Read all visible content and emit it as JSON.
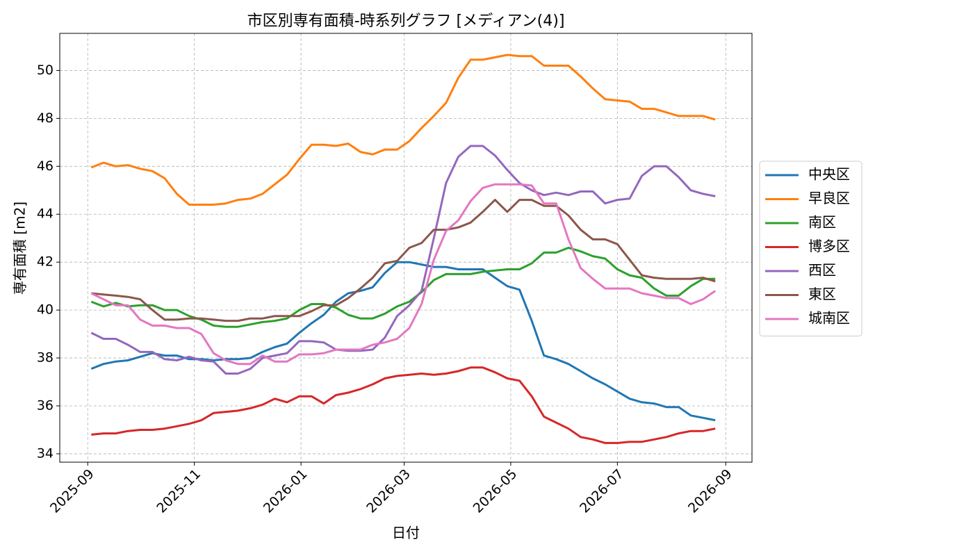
{
  "chart_data": {
    "type": "line",
    "title": "市区別専有面積-時系列グラフ [メディアン(4)]",
    "x_label": "日付",
    "y_label": "専有面積 [m2]",
    "x": [
      "2025-09-03",
      "2025-09-10",
      "2025-09-17",
      "2025-09-24",
      "2025-10-01",
      "2025-10-08",
      "2025-10-15",
      "2025-10-22",
      "2025-10-29",
      "2025-11-05",
      "2025-11-12",
      "2025-11-19",
      "2025-11-26",
      "2025-12-03",
      "2025-12-10",
      "2025-12-17",
      "2025-12-24",
      "2025-12-31",
      "2026-01-07",
      "2026-01-14",
      "2026-01-21",
      "2026-01-28",
      "2026-02-04",
      "2026-02-11",
      "2026-02-18",
      "2026-02-25",
      "2026-03-04",
      "2026-03-11",
      "2026-03-18",
      "2026-03-25",
      "2026-04-01",
      "2026-04-08",
      "2026-04-15",
      "2026-04-22",
      "2026-04-29",
      "2026-05-06",
      "2026-05-13",
      "2026-05-20",
      "2026-05-27",
      "2026-06-03",
      "2026-06-10",
      "2026-06-17",
      "2026-06-24",
      "2026-07-01",
      "2026-07-08",
      "2026-07-15",
      "2026-07-22",
      "2026-07-29",
      "2026-08-05",
      "2026-08-12",
      "2026-08-19",
      "2026-08-26"
    ],
    "series": [
      {
        "name": "中央区",
        "color": "#1f77b4",
        "values": [
          37.55,
          37.75,
          37.85,
          37.9,
          38.05,
          38.2,
          38.1,
          38.1,
          37.95,
          37.95,
          37.9,
          37.95,
          37.95,
          38.0,
          38.25,
          38.45,
          38.6,
          39.05,
          39.45,
          39.8,
          40.35,
          40.7,
          40.8,
          40.95,
          41.55,
          42.0,
          42.0,
          41.9,
          41.8,
          41.8,
          41.7,
          41.7,
          41.7,
          41.35,
          41.0,
          40.85,
          39.55,
          38.1,
          37.95,
          37.75,
          37.45,
          37.15,
          36.9,
          36.6,
          36.3,
          36.15,
          36.1,
          35.95,
          35.95,
          35.6,
          35.5,
          35.4
        ]
      },
      {
        "name": "早良区",
        "color": "#ff7f0e",
        "values": [
          45.95,
          46.15,
          46.0,
          46.05,
          45.9,
          45.8,
          45.5,
          44.85,
          44.4,
          44.4,
          44.4,
          44.45,
          44.6,
          44.65,
          44.85,
          45.25,
          45.65,
          46.3,
          46.9,
          46.9,
          46.85,
          46.95,
          46.6,
          46.5,
          46.7,
          46.7,
          47.05,
          47.6,
          48.1,
          48.65,
          49.7,
          50.45,
          50.45,
          50.55,
          50.65,
          50.6,
          50.6,
          50.2,
          50.2,
          50.2,
          49.75,
          49.25,
          48.8,
          48.75,
          48.7,
          48.4,
          48.4,
          48.25,
          48.1,
          48.1,
          48.1,
          47.95
        ]
      },
      {
        "name": "南区",
        "color": "#2ca02c",
        "values": [
          40.35,
          40.15,
          40.3,
          40.15,
          40.2,
          40.2,
          40.0,
          40.0,
          39.75,
          39.6,
          39.35,
          39.3,
          39.3,
          39.4,
          39.5,
          39.55,
          39.65,
          40.0,
          40.25,
          40.25,
          40.1,
          39.8,
          39.65,
          39.65,
          39.85,
          40.15,
          40.35,
          40.75,
          41.25,
          41.5,
          41.5,
          41.5,
          41.6,
          41.65,
          41.7,
          41.7,
          41.95,
          42.4,
          42.4,
          42.6,
          42.45,
          42.25,
          42.15,
          41.7,
          41.45,
          41.35,
          40.9,
          40.6,
          40.6,
          41.0,
          41.3,
          41.3
        ]
      },
      {
        "name": "博多区",
        "color": "#d62728",
        "values": [
          34.8,
          34.85,
          34.85,
          34.95,
          35.0,
          35.0,
          35.05,
          35.15,
          35.25,
          35.4,
          35.7,
          35.75,
          35.8,
          35.9,
          36.05,
          36.3,
          36.15,
          36.4,
          36.4,
          36.1,
          36.45,
          36.55,
          36.7,
          36.9,
          37.15,
          37.25,
          37.3,
          37.35,
          37.3,
          37.35,
          37.45,
          37.6,
          37.6,
          37.4,
          37.15,
          37.05,
          36.4,
          35.55,
          35.3,
          35.05,
          34.7,
          34.6,
          34.45,
          34.45,
          34.5,
          34.5,
          34.6,
          34.7,
          34.85,
          34.95,
          34.95,
          35.05
        ]
      },
      {
        "name": "西区",
        "color": "#9467bd",
        "values": [
          39.05,
          38.8,
          38.8,
          38.55,
          38.25,
          38.25,
          37.95,
          37.9,
          38.05,
          37.9,
          37.85,
          37.35,
          37.35,
          37.55,
          38.0,
          38.1,
          38.2,
          38.7,
          38.7,
          38.65,
          38.35,
          38.3,
          38.3,
          38.35,
          38.85,
          39.75,
          40.2,
          40.8,
          43.0,
          45.3,
          46.4,
          46.85,
          46.85,
          46.45,
          45.85,
          45.3,
          45.0,
          44.8,
          44.9,
          44.8,
          44.95,
          44.95,
          44.45,
          44.6,
          44.65,
          45.6,
          46.0,
          46.0,
          45.55,
          45.0,
          44.85,
          44.75
        ]
      },
      {
        "name": "東区",
        "color": "#8c564b",
        "values": [
          40.7,
          40.65,
          40.6,
          40.55,
          40.45,
          40.0,
          39.6,
          39.6,
          39.65,
          39.65,
          39.6,
          39.55,
          39.55,
          39.65,
          39.65,
          39.75,
          39.75,
          39.75,
          39.95,
          40.2,
          40.2,
          40.5,
          40.9,
          41.35,
          41.95,
          42.05,
          42.6,
          42.8,
          43.35,
          43.35,
          43.45,
          43.65,
          44.1,
          44.6,
          44.1,
          44.6,
          44.6,
          44.35,
          44.35,
          43.95,
          43.35,
          42.95,
          42.95,
          42.75,
          42.1,
          41.45,
          41.35,
          41.3,
          41.3,
          41.3,
          41.35,
          41.2
        ]
      },
      {
        "name": "城南区",
        "color": "#e377c2",
        "values": [
          40.7,
          40.45,
          40.2,
          40.2,
          39.6,
          39.35,
          39.35,
          39.25,
          39.25,
          39.0,
          38.2,
          37.9,
          37.75,
          37.75,
          38.1,
          37.85,
          37.85,
          38.15,
          38.15,
          38.2,
          38.35,
          38.35,
          38.35,
          38.55,
          38.65,
          38.8,
          39.25,
          40.25,
          42.1,
          43.3,
          43.75,
          44.55,
          45.1,
          45.25,
          45.25,
          45.25,
          45.2,
          44.45,
          44.45,
          42.95,
          41.75,
          41.3,
          40.9,
          40.9,
          40.9,
          40.7,
          40.6,
          40.5,
          40.5,
          40.25,
          40.45,
          40.8
        ]
      }
    ],
    "xlim": [
      "2025-08-16",
      "2026-09-16"
    ],
    "xticks": [
      "2025-09",
      "2025-11",
      "2026-01",
      "2026-03",
      "2026-05",
      "2026-07",
      "2026-09"
    ],
    "ylim": [
      33.65,
      51.55
    ],
    "yticks": [
      34,
      36,
      38,
      40,
      42,
      44,
      46,
      48,
      50
    ],
    "grid": true,
    "legend": "right"
  }
}
